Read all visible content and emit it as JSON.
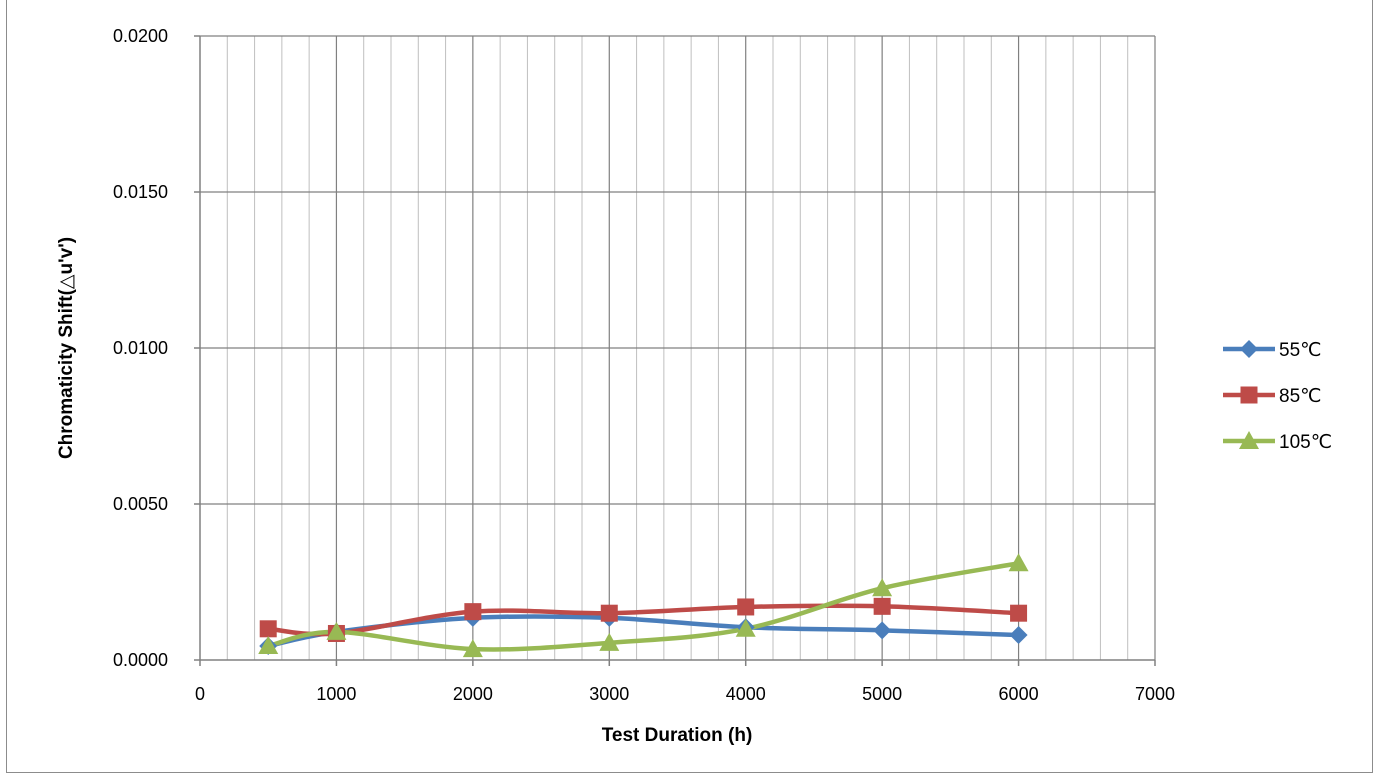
{
  "chart_data": {
    "type": "line",
    "smooth": true,
    "title": "",
    "xlabel": "Test Duration (h)",
    "ylabel": "Chromaticity Shift(△u'v')",
    "xlim": [
      0,
      7000
    ],
    "ylim": [
      0,
      0.02
    ],
    "x_ticks": [
      "0",
      "1000",
      "2000",
      "3000",
      "4000",
      "5000",
      "6000",
      "7000"
    ],
    "y_ticks": [
      "0.0000",
      "0.0050",
      "0.0100",
      "0.0150",
      "0.0200"
    ],
    "x_minor_step": 200,
    "grid": true,
    "legend_position": "right",
    "series": [
      {
        "name": "55℃",
        "color": "#4a7ebb",
        "marker": "diamond",
        "points": [
          [
            500,
            0.00045
          ],
          [
            1000,
            0.0009
          ],
          [
            2000,
            0.00135
          ],
          [
            3000,
            0.00135
          ],
          [
            4000,
            0.00105
          ],
          [
            5000,
            0.00095
          ],
          [
            6000,
            0.0008
          ]
        ]
      },
      {
        "name": "85℃",
        "color": "#be4b48",
        "marker": "square",
        "points": [
          [
            500,
            0.001
          ],
          [
            1000,
            0.00085
          ],
          [
            2000,
            0.00155
          ],
          [
            3000,
            0.0015
          ],
          [
            4000,
            0.0017
          ],
          [
            5000,
            0.00172
          ],
          [
            6000,
            0.0015
          ]
        ]
      },
      {
        "name": "105℃",
        "color": "#98b954",
        "marker": "triangle",
        "points": [
          [
            500,
            0.00045
          ],
          [
            1000,
            0.0009
          ],
          [
            2000,
            0.00035
          ],
          [
            3000,
            0.00055
          ],
          [
            4000,
            0.001
          ],
          [
            5000,
            0.0023
          ],
          [
            6000,
            0.0031
          ]
        ]
      }
    ]
  }
}
